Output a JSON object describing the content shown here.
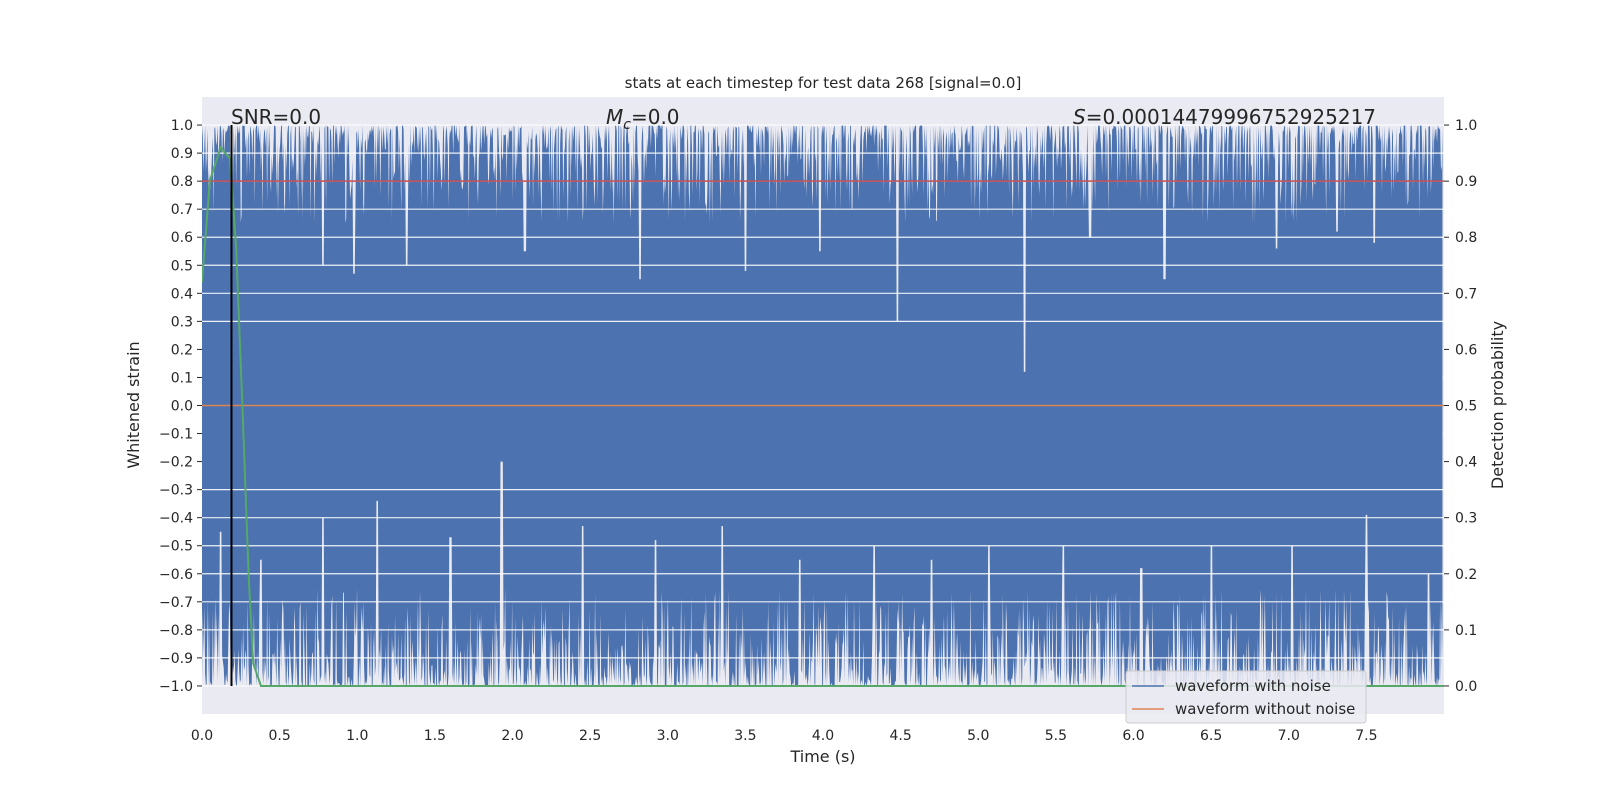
{
  "chart_data": {
    "type": "line",
    "title": "stats at each timestep for test data 268 [signal=0.0]",
    "xlabel": "Time (s)",
    "ylabel_left": "Whitened strain",
    "ylabel_right": "Detection probability",
    "xlim": [
      0,
      8
    ],
    "ylim_left": [
      -1.1,
      1.1
    ],
    "ylim_right": [
      -0.05,
      1.05
    ],
    "x_ticks": [
      0.0,
      0.5,
      1.0,
      1.5,
      2.0,
      2.5,
      3.0,
      3.5,
      4.0,
      4.5,
      5.0,
      5.5,
      6.0,
      6.5,
      7.0,
      7.5
    ],
    "x_tick_labels": [
      "0.0",
      "0.5",
      "1.0",
      "1.5",
      "2.0",
      "2.5",
      "3.0",
      "3.5",
      "4.0",
      "4.5",
      "5.0",
      "5.5",
      "6.0",
      "6.5",
      "7.0",
      "7.5"
    ],
    "y_ticks_left": [
      1.0,
      0.9,
      0.8,
      0.7,
      0.6,
      0.5,
      0.4,
      0.3,
      0.2,
      0.1,
      0.0,
      -0.1,
      -0.2,
      -0.3,
      -0.4,
      -0.5,
      -0.6,
      -0.7,
      -0.8,
      -0.9,
      -1.0
    ],
    "y_tick_labels_left": [
      "1.0",
      "0.9",
      "0.8",
      "0.7",
      "0.6",
      "0.5",
      "0.4",
      "0.3",
      "0.2",
      "0.1",
      "0.0",
      "−0.1",
      "−0.2",
      "−0.3",
      "−0.4",
      "−0.5",
      "−0.6",
      "−0.7",
      "−0.8",
      "−0.9",
      "−1.0"
    ],
    "y_ticks_right": [
      1.0,
      0.9,
      0.8,
      0.7,
      0.6,
      0.5,
      0.4,
      0.3,
      0.2,
      0.1,
      0.0
    ],
    "y_tick_labels_right": [
      "1.0",
      "0.9",
      "0.8",
      "0.7",
      "0.6",
      "0.5",
      "0.4",
      "0.3",
      "0.2",
      "0.1",
      "0.0"
    ],
    "annotations": {
      "snr": "SNR=0.0",
      "mc_symbol": "M",
      "mc_sub": "c",
      "mc_value": "=0.0",
      "s_symbol": "S",
      "s_value": "=0.00014479996752925217"
    },
    "series": [
      {
        "name": "waveform with noise",
        "axis": "left",
        "color": "#4c72b0",
        "description": "dense noise, envelope approx",
        "upper_envelope": {
          "x": [
            0.0,
            0.5,
            1.0,
            1.5,
            1.93,
            2.0,
            2.5,
            3.0,
            3.5,
            4.0,
            4.5,
            4.52,
            5.0,
            5.28,
            5.3,
            5.5,
            6.0,
            6.5,
            7.0,
            7.5,
            7.99
          ],
          "y": [
            1.0,
            1.0,
            1.0,
            1.0,
            1.0,
            1.0,
            1.0,
            1.0,
            1.0,
            1.0,
            1.0,
            1.0,
            1.0,
            1.0,
            1.0,
            1.0,
            1.0,
            1.0,
            1.0,
            1.0,
            1.0
          ]
        },
        "max_dips": {
          "x": [
            0.78,
            0.98,
            1.32,
            2.08,
            2.82,
            3.5,
            3.98,
            4.48,
            5.3,
            5.72,
            6.2,
            6.92,
            7.31,
            7.55
          ],
          "y": [
            0.5,
            0.47,
            0.5,
            0.55,
            0.45,
            0.48,
            0.55,
            0.3,
            0.12,
            0.6,
            0.45,
            0.56,
            0.62,
            0.58
          ]
        },
        "min_peaks": {
          "x": [
            0.12,
            0.38,
            0.78,
            1.13,
            1.6,
            1.93,
            2.45,
            2.92,
            3.35,
            3.85,
            4.33,
            4.7,
            5.07,
            5.55,
            6.05,
            6.5,
            7.02,
            7.5,
            7.9
          ],
          "y": [
            -0.45,
            -0.55,
            -0.4,
            -0.34,
            -0.47,
            -0.2,
            -0.43,
            -0.48,
            -0.43,
            -0.55,
            -0.5,
            -0.55,
            -0.5,
            -0.5,
            -0.58,
            -0.5,
            -0.5,
            -0.39,
            -0.6
          ]
        }
      },
      {
        "name": "waveform without noise",
        "axis": "left",
        "color": "#dd8452",
        "x": [
          0.0,
          8.0
        ],
        "y": [
          0.0,
          0.0
        ]
      },
      {
        "name": "",
        "axis": "right",
        "color": "#55a868",
        "x": [
          0.0,
          0.05,
          0.12,
          0.18,
          0.22,
          0.26,
          0.3,
          0.33,
          0.38,
          0.45,
          8.0
        ],
        "y": [
          0.72,
          0.9,
          0.96,
          0.94,
          0.78,
          0.5,
          0.2,
          0.04,
          0.0,
          0.0,
          0.0
        ]
      }
    ],
    "threshold": {
      "axis": "right",
      "value": 0.9,
      "color": "#c44e52"
    },
    "vertical_marker": {
      "x": 0.19,
      "color": "#000000"
    },
    "grid": true,
    "legend_position": "bottom-right"
  },
  "legend": {
    "items": [
      "waveform with noise",
      "waveform without noise"
    ]
  }
}
